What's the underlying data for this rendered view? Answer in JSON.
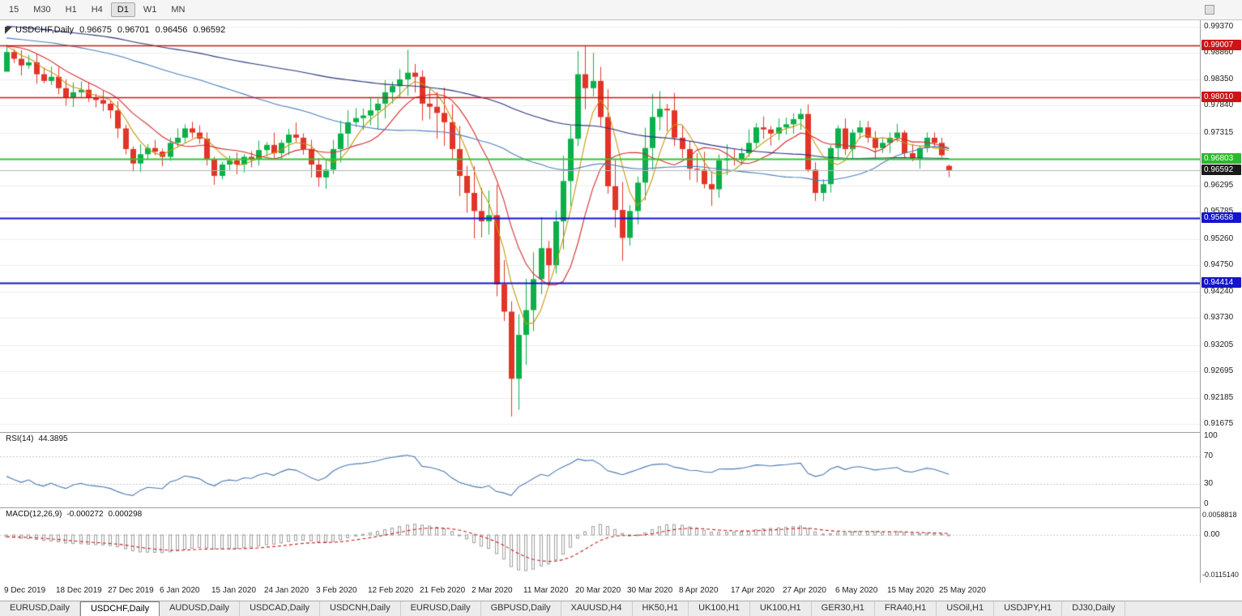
{
  "toolbar": {
    "timeframes": [
      "15",
      "M30",
      "H1",
      "H4",
      "D1",
      "W1",
      "MN"
    ],
    "active": "D1"
  },
  "chart_data": {
    "type": "candlestick",
    "title": "USDCHF,Daily",
    "ohlc_display": {
      "open": "0.96675",
      "high": "0.96701",
      "low": "0.96456",
      "close": "0.96592"
    },
    "ylim": [
      0.915179,
      0.994956
    ],
    "grid": true,
    "price_ticks": [
      {
        "v": 0.9937,
        "label": "0.99370"
      },
      {
        "v": 0.9886,
        "label": "0.98860"
      },
      {
        "v": 0.9835,
        "label": "0.98350"
      },
      {
        "v": 0.9784,
        "label": "0.97840"
      },
      {
        "v": 0.97315,
        "label": "0.97315"
      },
      {
        "v": 0.96295,
        "label": "0.96295"
      },
      {
        "v": 0.95785,
        "label": "0.95785"
      },
      {
        "v": 0.9526,
        "label": "0.95260"
      },
      {
        "v": 0.9475,
        "label": "0.94750"
      },
      {
        "v": 0.9424,
        "label": "0.94240"
      },
      {
        "v": 0.9373,
        "label": "0.93730"
      },
      {
        "v": 0.93205,
        "label": "0.93205"
      },
      {
        "v": 0.92695,
        "label": "0.92695"
      },
      {
        "v": 0.92185,
        "label": "0.92185"
      },
      {
        "v": 0.91675,
        "label": "0.91675"
      }
    ],
    "levels": [
      {
        "v": 0.99007,
        "label": "0.99007",
        "color": "#cc1414",
        "line_color": "#cc1414",
        "width": 1.5,
        "kind": "resistance"
      },
      {
        "v": 0.9801,
        "label": "0.98010",
        "color": "#cc1414",
        "line_color": "#cc1414",
        "width": 1.5,
        "kind": "resistance"
      },
      {
        "v": 0.96803,
        "label": "0.96803",
        "color": "#2db82d",
        "line_color": "#2dc72d",
        "width": 2,
        "kind": "support"
      },
      {
        "v": 0.96592,
        "label": "0.96592",
        "color": "#1a1a1a",
        "line_color": "#b4b4b4",
        "width": 1,
        "kind": "current-price",
        "current": true
      },
      {
        "v": 0.95658,
        "label": "0.95658",
        "color": "#1414cc",
        "line_color": "#1414cc",
        "width": 2,
        "kind": "support"
      },
      {
        "v": 0.94414,
        "label": "0.94414",
        "color": "#1414cc",
        "line_color": "#1414cc",
        "width": 2,
        "kind": "support"
      }
    ],
    "x_labels": [
      "9 Dec 2019",
      "18 Dec 2019",
      "27 Dec 2019",
      "6 Jan 2020",
      "15 Jan 2020",
      "24 Jan 2020",
      "3 Feb 2020",
      "12 Feb 2020",
      "21 Feb 2020",
      "2 Mar 2020",
      "11 Mar 2020",
      "20 Mar 2020",
      "30 Mar 2020",
      "8 Apr 2020",
      "17 Apr 2020",
      "27 Apr 2020",
      "6 May 2020",
      "15 May 2020",
      "25 May 2020"
    ],
    "candles": {
      "closes": [
        0.9888,
        0.9875,
        0.9862,
        0.9868,
        0.9845,
        0.9832,
        0.984,
        0.9818,
        0.98,
        0.981,
        0.9815,
        0.98,
        0.9795,
        0.9788,
        0.9775,
        0.974,
        0.97,
        0.9672,
        0.969,
        0.9702,
        0.9695,
        0.9685,
        0.9712,
        0.9722,
        0.974,
        0.9732,
        0.972,
        0.968,
        0.9648,
        0.967,
        0.9678,
        0.967,
        0.9685,
        0.968,
        0.9698,
        0.9708,
        0.9692,
        0.9712,
        0.9728,
        0.9722,
        0.97,
        0.967,
        0.9645,
        0.966,
        0.97,
        0.973,
        0.9752,
        0.976,
        0.9765,
        0.9775,
        0.9788,
        0.981,
        0.9822,
        0.9835,
        0.9848,
        0.984,
        0.9788,
        0.9782,
        0.977,
        0.9752,
        0.97,
        0.9648,
        0.9615,
        0.958,
        0.956,
        0.9572,
        0.9438,
        0.9385,
        0.9255,
        0.934,
        0.9388,
        0.9448,
        0.9508,
        0.9475,
        0.956,
        0.9638,
        0.972,
        0.9845,
        0.9818,
        0.9832,
        0.9762,
        0.9628,
        0.9582,
        0.9528,
        0.958,
        0.9635,
        0.9702,
        0.9762,
        0.9778,
        0.9775,
        0.9722,
        0.97,
        0.9662,
        0.966,
        0.9632,
        0.9622,
        0.9678,
        0.9682,
        0.968,
        0.9692,
        0.9712,
        0.9742,
        0.9738,
        0.973,
        0.9742,
        0.9748,
        0.9758,
        0.9768,
        0.966,
        0.9615,
        0.9632,
        0.9702,
        0.974,
        0.97,
        0.9732,
        0.9742,
        0.9722,
        0.9702,
        0.9712,
        0.9722,
        0.9732,
        0.9692,
        0.9682,
        0.9702,
        0.9722,
        0.9712,
        0.9688,
        0.96592
      ],
      "overrides": {
        "0": {
          "open": 0.985,
          "high": 0.9902
        },
        "68": {
          "low": 0.9182
        },
        "77": {
          "high": 0.989
        },
        "78": {
          "high": 0.9901
        },
        "127": {
          "open": 0.96675,
          "high": 0.96701,
          "low": 0.96456,
          "close": 0.96592
        }
      },
      "up_color": "#0cb04a",
      "down_color": "#e23428"
    },
    "moving_averages": [
      {
        "period": 5,
        "color": "#c8960c"
      },
      {
        "period": 10,
        "color": "#d42a2a"
      },
      {
        "period": 50,
        "color": "#4a7ebb"
      },
      {
        "period": 100,
        "color": "#25337a"
      }
    ],
    "indicators": {
      "rsi": {
        "name": "RSI(14)",
        "value": "44.3895",
        "color": "#4a78b0",
        "ylim": [
          -5,
          106
        ],
        "dashed_levels": [
          70,
          30
        ],
        "axis_labels": [
          {
            "v": 100,
            "label": "100"
          },
          {
            "v": 70,
            "label": "70"
          },
          {
            "v": 30,
            "label": "30"
          },
          {
            "v": 0,
            "label": "0"
          }
        ]
      },
      "macd": {
        "name": "MACD(12,26,9)",
        "value_main": "-0.000272",
        "value_signal": "0.000298",
        "histogram_color": "#9e9e9e",
        "signal_color": "#c41e1e",
        "ylim": [
          -0.01387,
          0.00799
        ],
        "axis_labels": [
          {
            "v": 0.0058818,
            "label": "0.0058818"
          },
          {
            "v": 0,
            "label": "0.00"
          },
          {
            "v": -0.011514,
            "label": "-0.0115140"
          }
        ]
      }
    }
  },
  "tabs": {
    "active_index": 1,
    "items": [
      "EURUSD,Daily",
      "USDCHF,Daily",
      "AUDUSD,Daily",
      "USDCAD,Daily",
      "USDCNH,Daily",
      "EURUSD,Daily",
      "GBPUSD,Daily",
      "XAUUSD,H4",
      "HK50,H1",
      "UK100,H1",
      "UK100,H1",
      "GER30,H1",
      "FRA40,H1",
      "USOil,H1",
      "USDJPY,H1",
      "DJ30,Daily"
    ]
  }
}
